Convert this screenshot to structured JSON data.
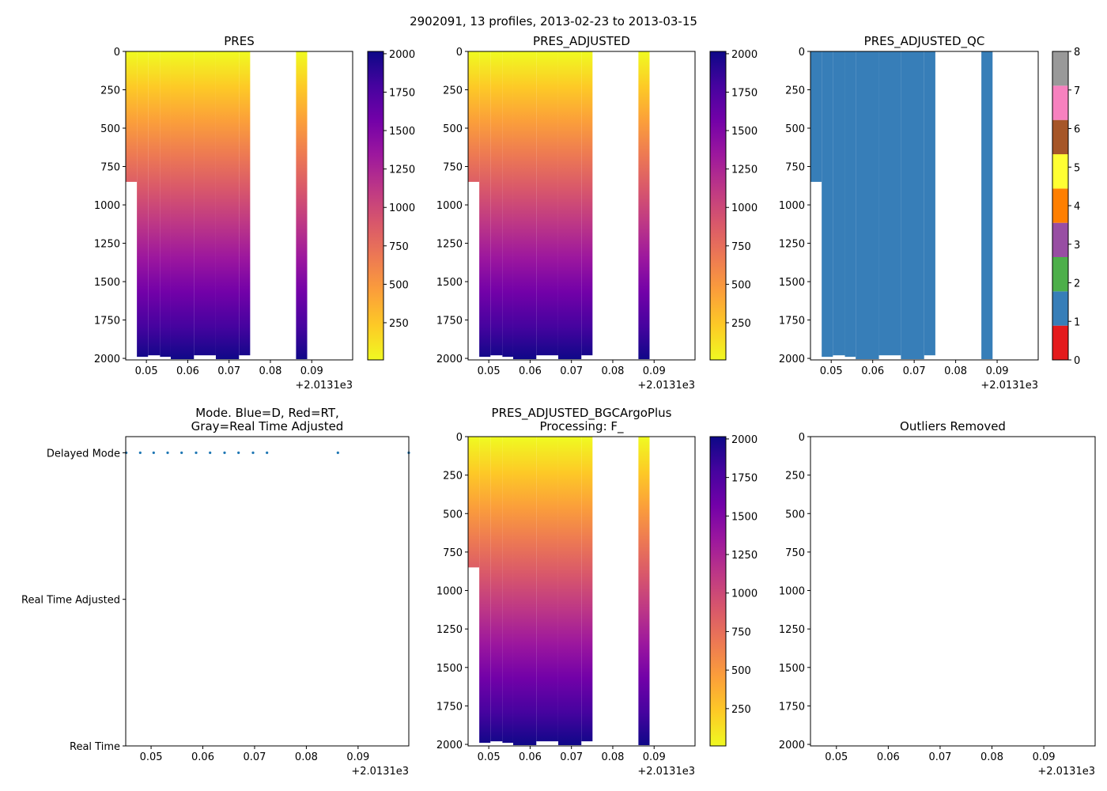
{
  "figure_title": "2902091, 13 profiles, 2013-02-23 to 2013-03-15",
  "colors": {
    "mode_points": "#1f77b4",
    "qc_fill": "#377eb8"
  },
  "chart_data": [
    {
      "id": "pres",
      "type": "heatmap",
      "title": [
        "PRES"
      ],
      "colormap": "plasma_r",
      "clim": [
        8,
        2015
      ],
      "colorbar_ticks": [
        250,
        500,
        750,
        1000,
        1250,
        1500,
        1750,
        2000
      ],
      "xlim": [
        0.045,
        0.0999
      ],
      "xticks": [
        0.05,
        0.06,
        0.07,
        0.08,
        0.09
      ],
      "x_offset_label": "+2.0131e3",
      "ylim": [
        2010,
        0
      ],
      "yticks": [
        0,
        250,
        500,
        750,
        1000,
        1250,
        1500,
        1750,
        2000
      ],
      "columns": [
        [
          0.045,
          0.0477,
          850
        ],
        [
          0.0477,
          0.0504,
          1990
        ],
        [
          0.0504,
          0.0533,
          1980
        ],
        [
          0.0533,
          0.0559,
          1990
        ],
        [
          0.0559,
          0.0615,
          2005
        ],
        [
          0.0615,
          0.0668,
          1980
        ],
        [
          0.0668,
          0.0724,
          2005
        ],
        [
          0.0724,
          0.0751,
          1980
        ],
        [
          0.0862,
          0.0889,
          2005
        ]
      ]
    },
    {
      "id": "pres_adj",
      "type": "heatmap",
      "title": [
        "PRES_ADJUSTED"
      ],
      "colormap": "plasma_r",
      "clim": [
        8,
        2015
      ],
      "colorbar_ticks": [
        250,
        500,
        750,
        1000,
        1250,
        1500,
        1750,
        2000
      ],
      "xlim": [
        0.045,
        0.0999
      ],
      "xticks": [
        0.05,
        0.06,
        0.07,
        0.08,
        0.09
      ],
      "x_offset_label": "+2.0131e3",
      "ylim": [
        2010,
        0
      ],
      "yticks": [
        0,
        250,
        500,
        750,
        1000,
        1250,
        1500,
        1750,
        2000
      ],
      "columns": [
        [
          0.045,
          0.0477,
          850
        ],
        [
          0.0477,
          0.0504,
          1990
        ],
        [
          0.0504,
          0.0533,
          1980
        ],
        [
          0.0533,
          0.0559,
          1990
        ],
        [
          0.0559,
          0.0615,
          2005
        ],
        [
          0.0615,
          0.0668,
          1980
        ],
        [
          0.0668,
          0.0724,
          2005
        ],
        [
          0.0724,
          0.0751,
          1980
        ],
        [
          0.0862,
          0.0889,
          2005
        ]
      ]
    },
    {
      "id": "pres_adj_qc",
      "type": "heatmap",
      "title": [
        "PRES_ADJUSTED_QC"
      ],
      "colormap": "Set1",
      "qc_value": 1,
      "clim": [
        0,
        8
      ],
      "colorbar_ticks": [
        0,
        1,
        2,
        3,
        4,
        5,
        6,
        7,
        8
      ],
      "qc_colors": [
        "#e41a1c",
        "#377eb8",
        "#4daf4a",
        "#984ea3",
        "#ff7f00",
        "#ffff33",
        "#a65628",
        "#f781bf",
        "#999999"
      ],
      "xlim": [
        0.045,
        0.0999
      ],
      "xticks": [
        0.05,
        0.06,
        0.07,
        0.08,
        0.09
      ],
      "x_offset_label": "+2.0131e3",
      "ylim": [
        2010,
        0
      ],
      "yticks": [
        0,
        250,
        500,
        750,
        1000,
        1250,
        1500,
        1750,
        2000
      ],
      "columns": [
        [
          0.045,
          0.0477,
          850
        ],
        [
          0.0477,
          0.0504,
          1990
        ],
        [
          0.0504,
          0.0533,
          1980
        ],
        [
          0.0533,
          0.0559,
          1990
        ],
        [
          0.0559,
          0.0615,
          2005
        ],
        [
          0.0615,
          0.0668,
          1980
        ],
        [
          0.0668,
          0.0724,
          2005
        ],
        [
          0.0724,
          0.0751,
          1980
        ],
        [
          0.0862,
          0.0889,
          2005
        ]
      ]
    },
    {
      "id": "mode",
      "type": "scatter",
      "title": [
        "Mode. Blue=D, Red=RT,",
        "Gray=Real Time Adjusted"
      ],
      "xlim": [
        0.0451,
        0.0998
      ],
      "xticks": [
        0.05,
        0.06,
        0.07,
        0.08,
        0.09
      ],
      "x_offset_label": "+2.0131e3",
      "ylim": [
        0,
        2.11
      ],
      "yticks": [
        0,
        1,
        2
      ],
      "ytick_labels": [
        "Real Time",
        "Real Time Adjusted",
        "Delayed Mode"
      ],
      "x": [
        0.0452,
        0.0479,
        0.0505,
        0.0532,
        0.0559,
        0.0587,
        0.0614,
        0.0642,
        0.0669,
        0.0697,
        0.0724,
        0.0861,
        0.0998
      ],
      "y": [
        2,
        2,
        2,
        2,
        2,
        2,
        2,
        2,
        2,
        2,
        2,
        2,
        2
      ]
    },
    {
      "id": "pres_bgc",
      "type": "heatmap",
      "title": [
        "PRES_ADJUSTED_BGCArgoPlus",
        "Processing: F_"
      ],
      "colormap": "plasma_r",
      "clim": [
        8,
        2015
      ],
      "colorbar_ticks": [
        250,
        500,
        750,
        1000,
        1250,
        1500,
        1750,
        2000
      ],
      "xlim": [
        0.045,
        0.0999
      ],
      "xticks": [
        0.05,
        0.06,
        0.07,
        0.08,
        0.09
      ],
      "x_offset_label": "+2.0131e3",
      "ylim": [
        2010,
        0
      ],
      "yticks": [
        0,
        250,
        500,
        750,
        1000,
        1250,
        1500,
        1750,
        2000
      ],
      "columns": [
        [
          0.045,
          0.0477,
          850
        ],
        [
          0.0477,
          0.0504,
          1990
        ],
        [
          0.0504,
          0.0533,
          1980
        ],
        [
          0.0533,
          0.0559,
          1990
        ],
        [
          0.0559,
          0.0615,
          2005
        ],
        [
          0.0615,
          0.0668,
          1980
        ],
        [
          0.0668,
          0.0724,
          2005
        ],
        [
          0.0724,
          0.0751,
          1980
        ],
        [
          0.0862,
          0.0889,
          2005
        ]
      ]
    },
    {
      "id": "outliers",
      "type": "heatmap",
      "title": [
        "Outliers Removed"
      ],
      "xlim": [
        0.045,
        0.0999
      ],
      "xticks": [
        0.05,
        0.06,
        0.07,
        0.08,
        0.09
      ],
      "x_offset_label": "+2.0131e3",
      "ylim": [
        2010,
        0
      ],
      "yticks": [
        0,
        250,
        500,
        750,
        1000,
        1250,
        1500,
        1750,
        2000
      ],
      "columns": []
    }
  ]
}
